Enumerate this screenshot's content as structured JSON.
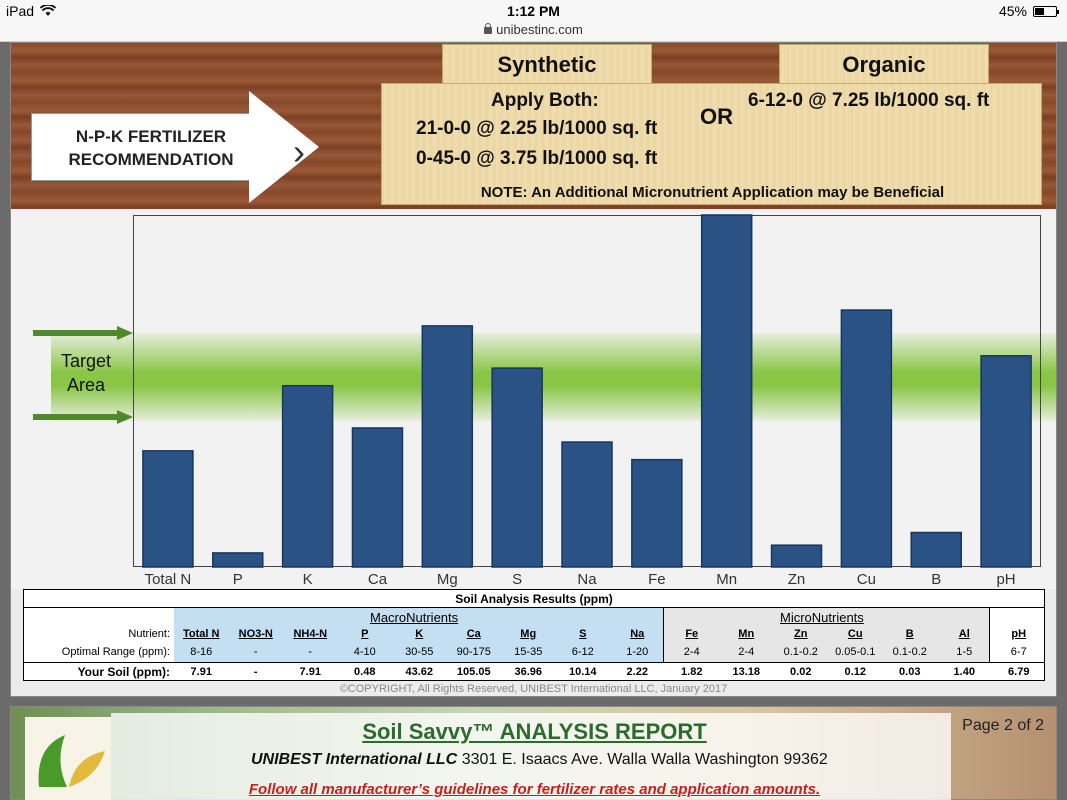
{
  "status": {
    "device": "iPad",
    "time": "1:12 PM",
    "battery": "45%",
    "battery_level": 0.45
  },
  "browser": {
    "url": "unibestinc.com"
  },
  "header": {
    "arrow_line1": "N-P-K FERTILIZER",
    "arrow_line2": "RECOMMENDATION",
    "tab_synthetic": "Synthetic",
    "tab_organic": "Organic",
    "apply_both": "Apply Both:",
    "synthetic_line1": "21-0-0 @ 2.25 lb/1000 sq. ft",
    "synthetic_line2": "0-45-0 @ 3.75 lb/1000 sq. ft",
    "or": "OR",
    "organic_line1": "6-12-0 @ 7.25 lb/1000 sq. ft",
    "note": "NOTE: An Additional Micronutrient Application may be Beneficial"
  },
  "chart_data": {
    "type": "bar",
    "target_label_1": "Target",
    "target_label_2": "Area",
    "categories": [
      "Total N",
      "P",
      "K",
      "Ca",
      "Mg",
      "S",
      "Na",
      "Fe",
      "Mn",
      "Zn",
      "Cu",
      "B",
      "pH"
    ],
    "values": [
      0.33,
      0.04,
      0.515,
      0.395,
      0.685,
      0.565,
      0.355,
      0.305,
      1.0,
      0.062,
      0.73,
      0.098,
      0.6
    ],
    "target_band": [
      0.44,
      0.68
    ],
    "color": "#2a5285",
    "grid": false
  },
  "table": {
    "title": "Soil Analysis Results (ppm)",
    "macro_label": "MacroNutrients",
    "micro_label": "MicroNutrients",
    "row_nutrient": "Nutrient:",
    "row_optimal": "Optimal Range (ppm):",
    "row_yours": "Your Soil (ppm):",
    "columns": [
      {
        "name": "Total N",
        "optimal": "8-16",
        "yours": "7.91"
      },
      {
        "name": "NO3-N",
        "optimal": "-",
        "yours": "-"
      },
      {
        "name": "NH4-N",
        "optimal": "-",
        "yours": "7.91"
      },
      {
        "name": "P",
        "optimal": "4-10",
        "yours": "0.48"
      },
      {
        "name": "K",
        "optimal": "30-55",
        "yours": "43.62"
      },
      {
        "name": "Ca",
        "optimal": "90-175",
        "yours": "105.05"
      },
      {
        "name": "Mg",
        "optimal": "15-35",
        "yours": "36.96"
      },
      {
        "name": "S",
        "optimal": "6-12",
        "yours": "10.14"
      },
      {
        "name": "Na",
        "optimal": "1-20",
        "yours": "2.22"
      },
      {
        "name": "Fe",
        "optimal": "2-4",
        "yours": "1.82"
      },
      {
        "name": "Mn",
        "optimal": "2-4",
        "yours": "13.18"
      },
      {
        "name": "Zn",
        "optimal": "0.1-0.2",
        "yours": "0.02"
      },
      {
        "name": "Cu",
        "optimal": "0.05-0.1",
        "yours": "0.12"
      },
      {
        "name": "B",
        "optimal": "0.1-0.2",
        "yours": "0.03"
      },
      {
        "name": "Al",
        "optimal": "1-5",
        "yours": "1.40"
      },
      {
        "name": "pH",
        "optimal": "6-7",
        "yours": "6.79"
      }
    ]
  },
  "copyright": "©COPYRIGHT, All Rights Reserved, UNIBEST International LLC, January 2017",
  "footer": {
    "title": "Soil Savvy™ ANALYSIS REPORT",
    "company": "UNIBEST International LLC",
    "address": "3301 E. Isaacs Ave. Walla Walla Washington 99362",
    "warning": "Follow all manufacturer’s guidelines for fertilizer rates and application amounts.",
    "page": "Page 2 of 2"
  }
}
